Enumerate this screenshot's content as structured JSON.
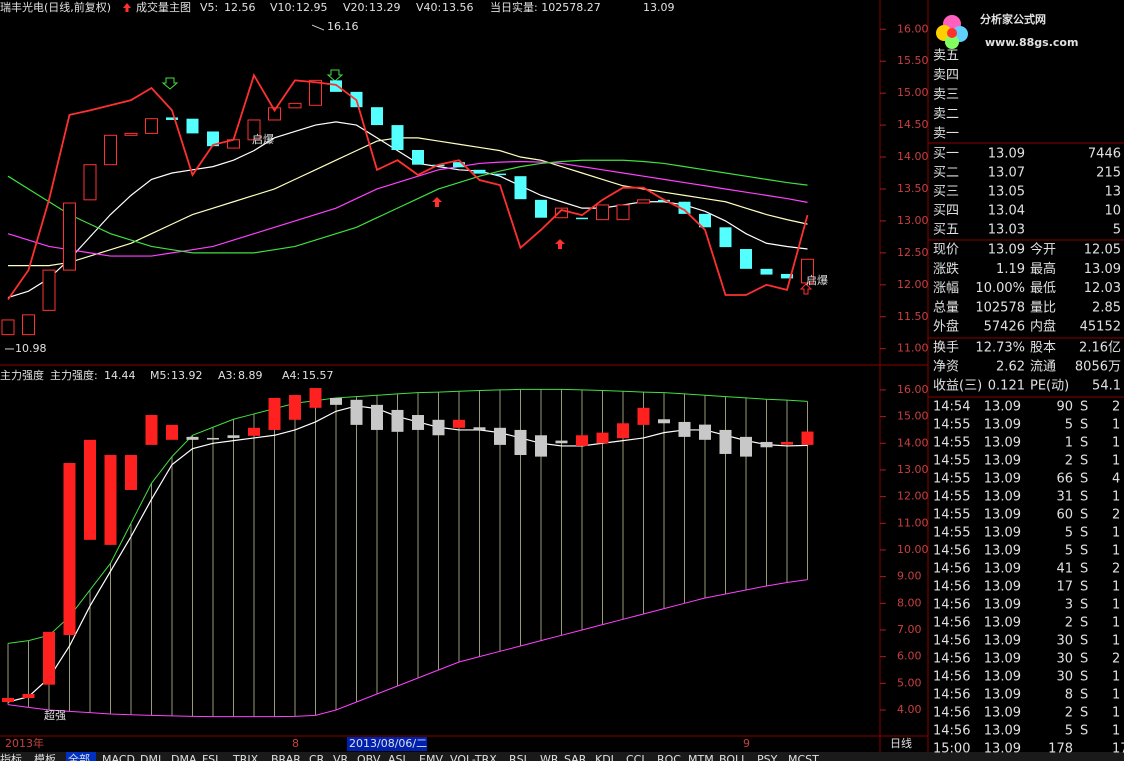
{
  "chart_data": [
    {
      "type": "candlestick",
      "title": "瑞丰光电(日线,前复权)",
      "subtitle": "成交量主图",
      "annotations": [
        "当日实量: 102578.27",
        "13.09",
        "启爆",
        "启爆"
      ],
      "high": 16.16,
      "low": 10.98,
      "ylim": [
        10.87,
        16.27
      ],
      "yticks": [
        {
          "value": 11,
          "label": "11.00"
        },
        {
          "value": 11.5,
          "label": "11.50"
        },
        {
          "value": 12,
          "label": "12.00"
        },
        {
          "value": 12.5,
          "label": "12.50"
        },
        {
          "value": 13,
          "label": "13.00"
        },
        {
          "value": 13.5,
          "label": "13.50"
        },
        {
          "value": 14,
          "label": "14.00"
        },
        {
          "value": 14.5,
          "label": "14.50"
        },
        {
          "value": 15,
          "label": "15.00"
        },
        {
          "value": 15.5,
          "label": "15.50"
        },
        {
          "value": 16,
          "label": "16.00"
        }
      ],
      "up_color": "#ff3232",
      "down_color": "#54ffff",
      "open": [
        11.22,
        11.22,
        11.6,
        12.23,
        13.33,
        13.88,
        14.34,
        14.37,
        14.62,
        14.6,
        14.4,
        14.14,
        14.27,
        14.58,
        14.77,
        14.81,
        15.2,
        15.02,
        14.78,
        14.5,
        14.11,
        13.88,
        13.92,
        13.8,
        13.74,
        13.7,
        13.33,
        13.05,
        13.05,
        13.02,
        13.02,
        13.28,
        13.33,
        13.3,
        13.11,
        12.9,
        12.56,
        12.25,
        12.17,
        12.03
      ],
      "close": [
        11.45,
        11.53,
        12.23,
        13.28,
        13.88,
        14.34,
        14.37,
        14.6,
        14.58,
        14.37,
        14.17,
        14.27,
        14.58,
        14.77,
        14.84,
        15.2,
        15.02,
        14.78,
        14.5,
        14.11,
        13.88,
        13.87,
        13.84,
        13.74,
        13.73,
        13.34,
        13.05,
        13.2,
        13.04,
        13.25,
        13.25,
        13.33,
        13.3,
        13.11,
        12.9,
        12.59,
        12.25,
        12.16,
        12.1,
        12.4
      ],
      "overlay": {
        "color": "#ff3030",
        "values": [
          11.77,
          12.23,
          13.33,
          14.66,
          14.73,
          14.81,
          14.89,
          15.08,
          14.73,
          13.72,
          14.19,
          14.27,
          15.28,
          14.73,
          15.2,
          15.17,
          15.13,
          14.89,
          13.8,
          13.95,
          13.72,
          13.88,
          13.95,
          13.64,
          13.56,
          12.58,
          12.86,
          13.17,
          13.09,
          13.33,
          13.52,
          13.52,
          13.33,
          13.17,
          12.86,
          11.84,
          11.84,
          12.0,
          11.92,
          13.09
        ]
      },
      "series": [
        {
          "name": "V5:",
          "color": "#ffffff",
          "values": [
            11.8,
            11.9,
            12.1,
            12.4,
            12.75,
            13.1,
            13.4,
            13.65,
            13.75,
            13.8,
            13.85,
            13.95,
            14.1,
            14.3,
            14.4,
            14.5,
            14.55,
            14.5,
            14.3,
            14.1,
            13.9,
            13.85,
            13.8,
            13.78,
            13.7,
            13.55,
            13.4,
            13.3,
            13.2,
            13.2,
            13.25,
            13.3,
            13.3,
            13.25,
            13.15,
            13.0,
            12.8,
            12.65,
            12.6,
            12.56
          ]
        },
        {
          "name": "V10:",
          "color": "#ffffc0",
          "values": [
            12.3,
            12.3,
            12.3,
            12.35,
            12.45,
            12.55,
            12.65,
            12.8,
            12.95,
            13.1,
            13.2,
            13.3,
            13.4,
            13.5,
            13.65,
            13.8,
            13.95,
            14.1,
            14.25,
            14.3,
            14.3,
            14.25,
            14.2,
            14.15,
            14.1,
            14.0,
            13.95,
            13.85,
            13.75,
            13.65,
            13.55,
            13.5,
            13.45,
            13.4,
            13.35,
            13.3,
            13.2,
            13.1,
            13.02,
            12.95
          ]
        },
        {
          "name": "V20:",
          "color": "#ff40ff",
          "values": [
            12.8,
            12.7,
            12.6,
            12.55,
            12.5,
            12.45,
            12.45,
            12.45,
            12.5,
            12.55,
            12.6,
            12.7,
            12.8,
            12.9,
            13.0,
            13.1,
            13.2,
            13.35,
            13.5,
            13.6,
            13.7,
            13.8,
            13.85,
            13.9,
            13.92,
            13.93,
            13.92,
            13.9,
            13.85,
            13.8,
            13.75,
            13.7,
            13.65,
            13.6,
            13.55,
            13.5,
            13.45,
            13.4,
            13.35,
            13.29
          ]
        },
        {
          "name": "V40:",
          "color": "#40e040",
          "values": [
            13.7,
            13.5,
            13.3,
            13.1,
            12.95,
            12.8,
            12.7,
            12.6,
            12.55,
            12.5,
            12.5,
            12.5,
            12.5,
            12.55,
            12.6,
            12.7,
            12.8,
            12.9,
            13.05,
            13.2,
            13.35,
            13.5,
            13.6,
            13.7,
            13.78,
            13.85,
            13.9,
            13.93,
            13.95,
            13.95,
            13.95,
            13.93,
            13.9,
            13.85,
            13.8,
            13.75,
            13.7,
            13.65,
            13.6,
            13.56
          ]
        }
      ]
    },
    {
      "type": "candlestick",
      "title": "主力强度",
      "name": "主力强度:",
      "annotations": [
        "超强"
      ],
      "categories": [
        "2013年",
        null,
        null,
        null,
        null,
        null,
        null,
        null,
        null,
        null,
        null,
        null,
        null,
        null,
        "8",
        null,
        null,
        null,
        null,
        null,
        null,
        null,
        null,
        null,
        null,
        null,
        null,
        null,
        null,
        null,
        null,
        null,
        null,
        null,
        null,
        null,
        "9",
        null,
        null,
        null
      ],
      "cursor_date": "2013/08/06/二",
      "ylim": [
        3.25,
        16.26
      ],
      "yticks": [
        {
          "value": 4,
          "label": "4.00"
        },
        {
          "value": 5,
          "label": "5.00"
        },
        {
          "value": 6,
          "label": "6.00"
        },
        {
          "value": 7,
          "label": "7.00"
        },
        {
          "value": 8,
          "label": "8.00"
        },
        {
          "value": 9,
          "label": "9.00"
        },
        {
          "value": 10,
          "label": "10.00"
        },
        {
          "value": 11,
          "label": "11.00"
        },
        {
          "value": 12,
          "label": "12.00"
        },
        {
          "value": 13,
          "label": "13.00"
        },
        {
          "value": 14,
          "label": "14.00"
        },
        {
          "value": 15,
          "label": "15.00"
        },
        {
          "value": 16,
          "label": "16.00"
        }
      ],
      "up_color": "#ff2020",
      "down_color": "#c8c8c8",
      "open": [
        4.3,
        4.45,
        4.95,
        6.81,
        10.38,
        10.19,
        12.25,
        13.94,
        14.13,
        14.24,
        14.2,
        14.3,
        14.28,
        14.5,
        14.88,
        15.33,
        15.7,
        15.63,
        15.44,
        15.25,
        15.06,
        14.88,
        14.58,
        14.6,
        14.58,
        14.5,
        14.3,
        14.1,
        13.9,
        14.0,
        14.19,
        14.69,
        14.9,
        14.8,
        14.7,
        14.5,
        14.24,
        14.05,
        13.95,
        13.94
      ],
      "close": [
        4.45,
        4.6,
        6.93,
        13.26,
        14.13,
        13.56,
        13.56,
        15.06,
        14.69,
        14.13,
        14.14,
        14.2,
        14.58,
        15.7,
        15.81,
        16.07,
        15.44,
        14.69,
        14.5,
        14.43,
        14.5,
        14.3,
        14.88,
        14.5,
        13.94,
        13.56,
        13.5,
        14.0,
        14.3,
        14.4,
        14.75,
        15.33,
        14.75,
        14.24,
        14.13,
        13.6,
        13.5,
        13.85,
        14.05,
        14.44
      ],
      "series": [
        {
          "name": "M5:",
          "color": "#ffffff",
          "values": [
            4.3,
            4.5,
            5.2,
            6.4,
            7.9,
            9.2,
            10.5,
            11.9,
            13.2,
            13.8,
            14.0,
            14.1,
            14.2,
            14.3,
            14.5,
            14.8,
            15.2,
            15.4,
            15.3,
            15.0,
            14.8,
            14.6,
            14.5,
            14.5,
            14.4,
            14.2,
            14.0,
            13.9,
            13.9,
            14.0,
            14.1,
            14.2,
            14.4,
            14.5,
            14.5,
            14.3,
            14.1,
            13.95,
            13.9,
            13.92
          ]
        },
        {
          "name": "A3:",
          "color": "#ff40ff",
          "values": [
            4.2,
            4.1,
            4.0,
            3.95,
            3.9,
            3.85,
            3.82,
            3.8,
            3.78,
            3.76,
            3.75,
            3.75,
            3.75,
            3.75,
            3.76,
            3.8,
            4.0,
            4.3,
            4.6,
            4.9,
            5.2,
            5.5,
            5.8,
            6.0,
            6.2,
            6.4,
            6.6,
            6.8,
            7.0,
            7.2,
            7.4,
            7.6,
            7.8,
            8.0,
            8.2,
            8.35,
            8.5,
            8.65,
            8.78,
            8.89
          ]
        },
        {
          "name": "A4:",
          "color": "#40e040",
          "values": [
            6.5,
            6.6,
            6.8,
            7.5,
            8.5,
            9.5,
            11,
            12.5,
            13.5,
            14.3,
            14.6,
            14.9,
            15.1,
            15.3,
            15.5,
            15.6,
            15.7,
            15.75,
            15.8,
            15.85,
            15.9,
            15.92,
            15.95,
            15.98,
            16.0,
            16.02,
            16.02,
            16.02,
            16.0,
            15.98,
            15.95,
            15.92,
            15.9,
            15.85,
            15.8,
            15.75,
            15.7,
            15.65,
            15.62,
            15.57
          ]
        }
      ]
    }
  ],
  "period": "日线",
  "tabs": [
    "指标",
    "模板",
    "全部",
    "MACD",
    "DMI",
    "DMA",
    "FSL",
    "TRIX",
    "BRAR",
    "CR",
    "VR",
    "OBV",
    "ASI",
    "EMV",
    "VOL-TRX",
    "RSI",
    "WR",
    "SAR",
    "KDJ",
    "CCI",
    "ROC",
    "MTM",
    "BOLL",
    "PSY",
    "MCST"
  ],
  "logo": {
    "name": "分析家公式网",
    "url": "www.88gs.com"
  },
  "quote": {
    "asks": [
      "卖五",
      "卖四",
      "卖三",
      "卖二",
      "卖一"
    ],
    "bids": [
      [
        "买一",
        "13.09",
        "7446"
      ],
      [
        "买二",
        "13.07",
        "215"
      ],
      [
        "买三",
        "13.05",
        "13"
      ],
      [
        "买四",
        "13.04",
        "10"
      ],
      [
        "买五",
        "13.03",
        "5"
      ]
    ],
    "stats": [
      [
        "现价",
        "13.09",
        "今开",
        "12.05"
      ],
      [
        "涨跌",
        "1.19",
        "最高",
        "13.09"
      ],
      [
        "涨幅",
        "10.00%",
        "最低",
        "12.03"
      ],
      [
        "总量",
        "102578",
        "量比",
        "2.85"
      ],
      [
        "外盘",
        "57426",
        "内盘",
        "45152"
      ]
    ],
    "finance": [
      [
        "换手",
        "12.73%",
        "股本",
        "2.16亿"
      ],
      [
        "净资",
        "2.62",
        "流通",
        "8056万"
      ],
      [
        "收益(三)",
        "0.121",
        "PE(动)",
        "54.1"
      ]
    ],
    "trades": [
      [
        "14:54",
        "13.09",
        "90",
        "S",
        "2"
      ],
      [
        "14:55",
        "13.09",
        "5",
        "S",
        "1"
      ],
      [
        "14:55",
        "13.09",
        "1",
        "S",
        "1"
      ],
      [
        "14:55",
        "13.09",
        "2",
        "S",
        "1"
      ],
      [
        "14:55",
        "13.09",
        "66",
        "S",
        "4"
      ],
      [
        "14:55",
        "13.09",
        "31",
        "S",
        "1"
      ],
      [
        "14:55",
        "13.09",
        "60",
        "S",
        "2"
      ],
      [
        "14:55",
        "13.09",
        "5",
        "S",
        "1"
      ],
      [
        "14:56",
        "13.09",
        "5",
        "S",
        "1"
      ],
      [
        "14:56",
        "13.09",
        "41",
        "S",
        "2"
      ],
      [
        "14:56",
        "13.09",
        "17",
        "S",
        "1"
      ],
      [
        "14:56",
        "13.09",
        "3",
        "S",
        "1"
      ],
      [
        "14:56",
        "13.09",
        "2",
        "S",
        "1"
      ],
      [
        "14:56",
        "13.09",
        "30",
        "S",
        "1"
      ],
      [
        "14:56",
        "13.09",
        "30",
        "S",
        "2"
      ],
      [
        "14:56",
        "13.09",
        "30",
        "S",
        "1"
      ],
      [
        "14:56",
        "13.09",
        "8",
        "S",
        "1"
      ],
      [
        "14:56",
        "13.09",
        "2",
        "S",
        "1"
      ],
      [
        "14:56",
        "13.09",
        "5",
        "S",
        "1"
      ],
      [
        "15:00",
        "13.09",
        "178",
        "17"
      ]
    ]
  }
}
